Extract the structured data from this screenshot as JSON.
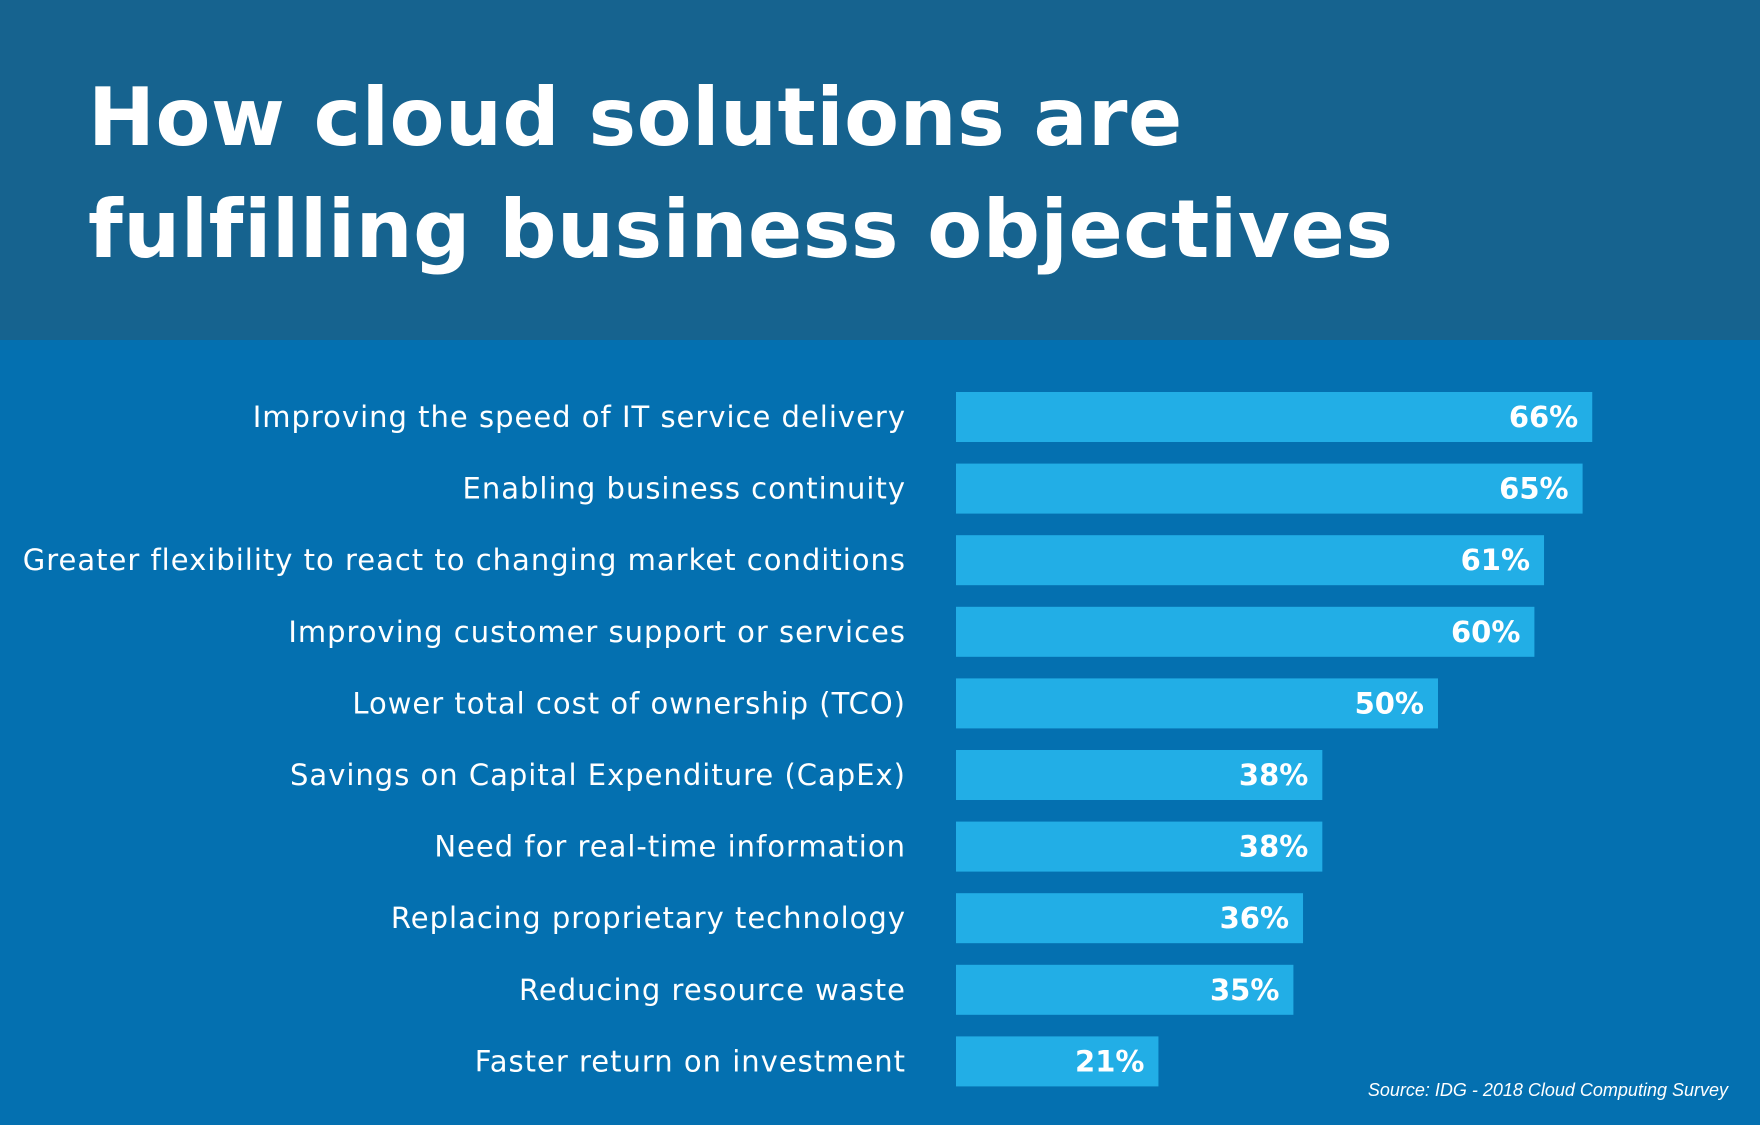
{
  "header": {
    "title": "How cloud solutions are fulfilling business objectives"
  },
  "footer": {
    "source": "Source: IDG - 2018 Cloud Computing Survey"
  },
  "colors": {
    "header_background": "#16638f",
    "chart_background": "#0470b0",
    "bar": "#22aee6",
    "text": "#ffffff"
  },
  "chart_data": {
    "type": "bar",
    "orientation": "horizontal",
    "title": "How cloud solutions are fulfilling business objectives",
    "xlabel": "",
    "ylabel": "",
    "grid": false,
    "legend": "none",
    "xlim": [
      0,
      100
    ],
    "categories": [
      "Improving the speed of IT service delivery",
      "Enabling business continuity",
      "Greater flexibility to react to changing market conditions",
      "Improving customer support or services",
      "Lower total cost of ownership (TCO)",
      "Savings on Capital Expenditure (CapEx)",
      "Need for real-time information",
      "Replacing proprietary technology",
      "Reducing resource waste",
      "Faster return on investment"
    ],
    "values": [
      66,
      65,
      61,
      60,
      50,
      38,
      38,
      36,
      35,
      21
    ],
    "value_labels": [
      "66%",
      "65%",
      "61%",
      "60%",
      "50%",
      "38%",
      "38%",
      "36%",
      "35%",
      "21%"
    ]
  }
}
